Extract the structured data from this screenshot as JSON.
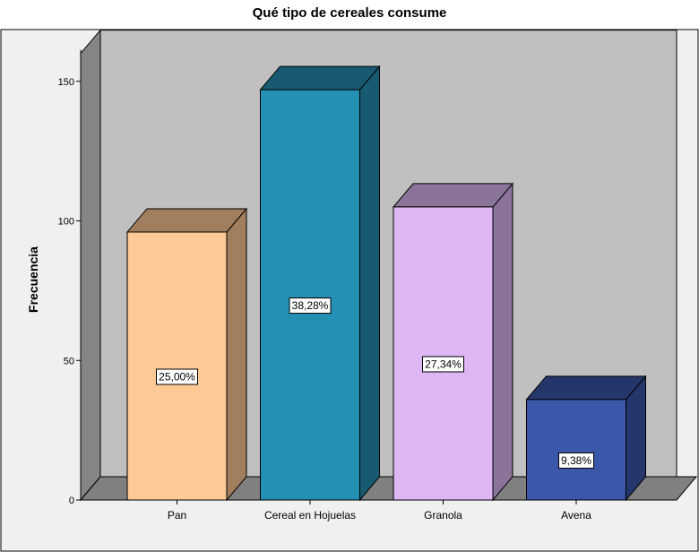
{
  "chart_data": {
    "type": "bar",
    "title": "Qué tipo de cereales consume",
    "ylabel": "Frecuencia",
    "xlabel": "",
    "ylim": [
      0,
      160
    ],
    "yticks": [
      0,
      50,
      100,
      150
    ],
    "categories": [
      "Pan",
      "Cereal en Hojuelas",
      "Granola",
      "Avena"
    ],
    "values": [
      96,
      147,
      105,
      36
    ],
    "percent_labels": [
      "25,00%",
      "38,28%",
      "27,34%",
      "9,38%"
    ],
    "colors": {
      "front": [
        "#fdc995",
        "#2490b3",
        "#dcb7f2",
        "#3b57aa"
      ],
      "top": [
        "#a07e5e",
        "#175a71",
        "#8a749a",
        "#25366b"
      ],
      "side": [
        "#a07e5e",
        "#175a71",
        "#8a749a",
        "#25366b"
      ],
      "plot_wall": "#c0c0c0",
      "side_wall": "#858585",
      "floor": "#808080",
      "frame_bg": "#f0f0f0"
    },
    "grid": false,
    "view": "3d"
  }
}
